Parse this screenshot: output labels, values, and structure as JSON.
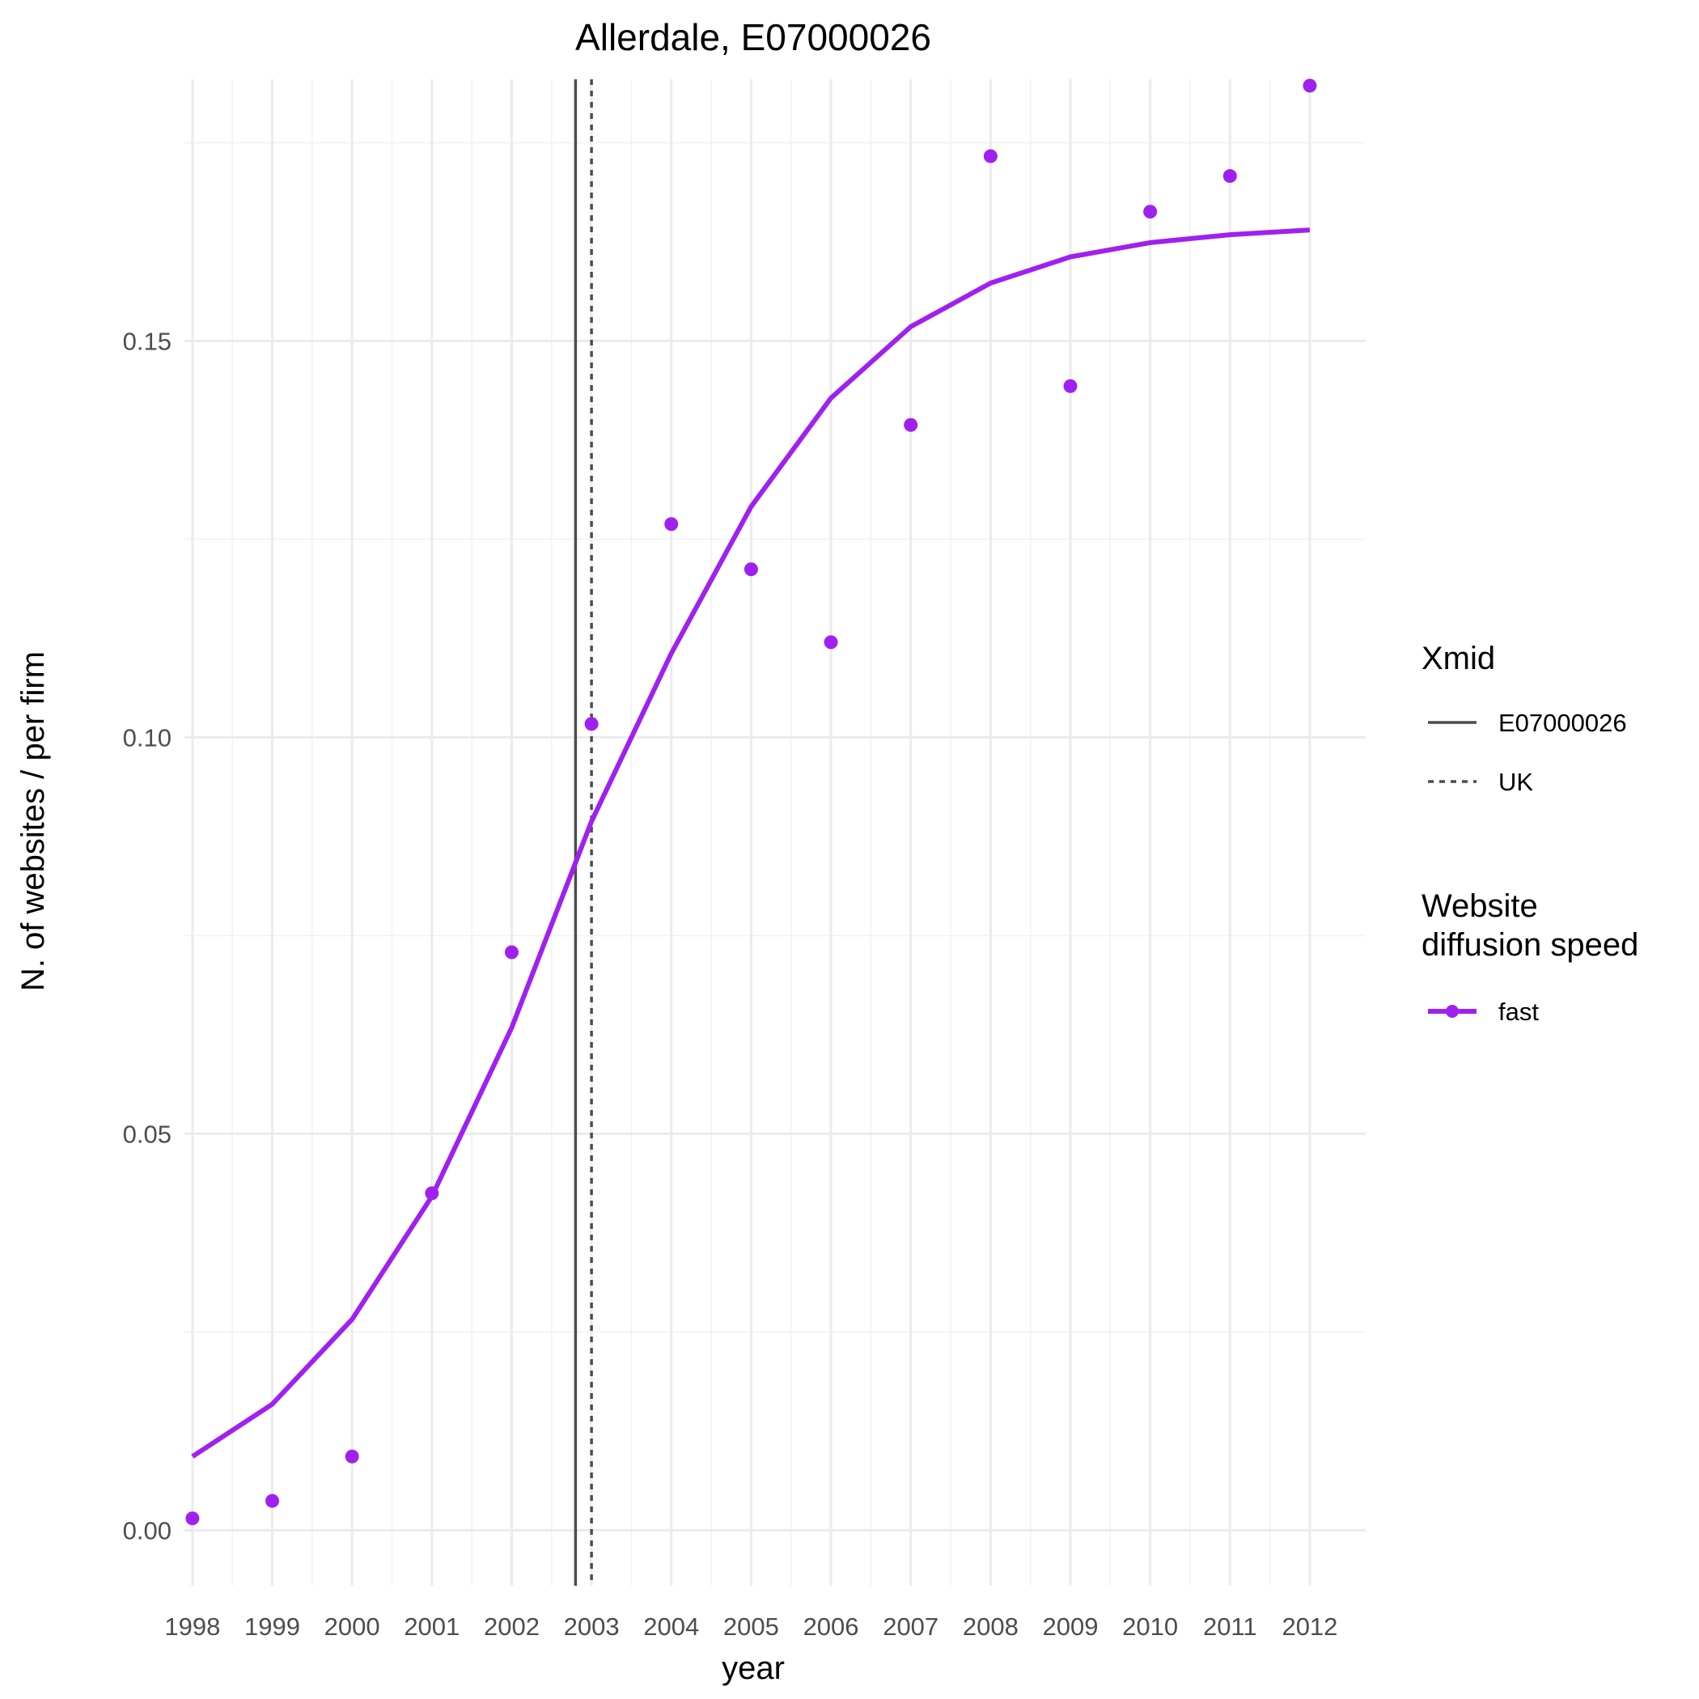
{
  "chart_data": {
    "type": "line",
    "title": "Allerdale, E07000026",
    "xlabel": "year",
    "ylabel": "N. of websites / per firm",
    "x": [
      1998,
      1999,
      2000,
      2001,
      2002,
      2003,
      2004,
      2005,
      2006,
      2007,
      2008,
      2009,
      2010,
      2011,
      2012
    ],
    "xlim": [
      1997.9,
      2012.7
    ],
    "ylim": [
      -0.007,
      0.183
    ],
    "y_ticks": [
      0.0,
      0.05,
      0.1,
      0.15
    ],
    "y_tick_labels": [
      "0.00",
      "0.05",
      "0.10",
      "0.15"
    ],
    "grid": true,
    "series": [
      {
        "name": "fast",
        "color": "#a020f0",
        "points": [
          0.0015,
          0.0037,
          0.0093,
          0.0425,
          0.0729,
          0.1017,
          0.1269,
          0.1212,
          0.112,
          0.1394,
          0.1733,
          0.1443,
          0.1663,
          0.1708,
          0.1822
        ],
        "fitted": [
          0.0093,
          0.0159,
          0.0266,
          0.0421,
          0.0634,
          0.0894,
          0.1106,
          0.1291,
          0.1428,
          0.1518,
          0.1573,
          0.1606,
          0.1624,
          0.1634,
          0.164
        ]
      }
    ],
    "vlines": [
      {
        "name": "E07000026",
        "x": 2002.8,
        "linetype": "solid",
        "color": "#4d4d4d"
      },
      {
        "name": "UK",
        "x": 2003.0,
        "linetype": "dashed",
        "color": "#4d4d4d"
      }
    ],
    "legend": {
      "placement": "right",
      "groups": [
        {
          "title": "Xmid",
          "entries": [
            "E07000026",
            "UK"
          ]
        },
        {
          "title": [
            "Website",
            "diffusion speed"
          ],
          "entries": [
            "fast"
          ]
        }
      ]
    }
  }
}
